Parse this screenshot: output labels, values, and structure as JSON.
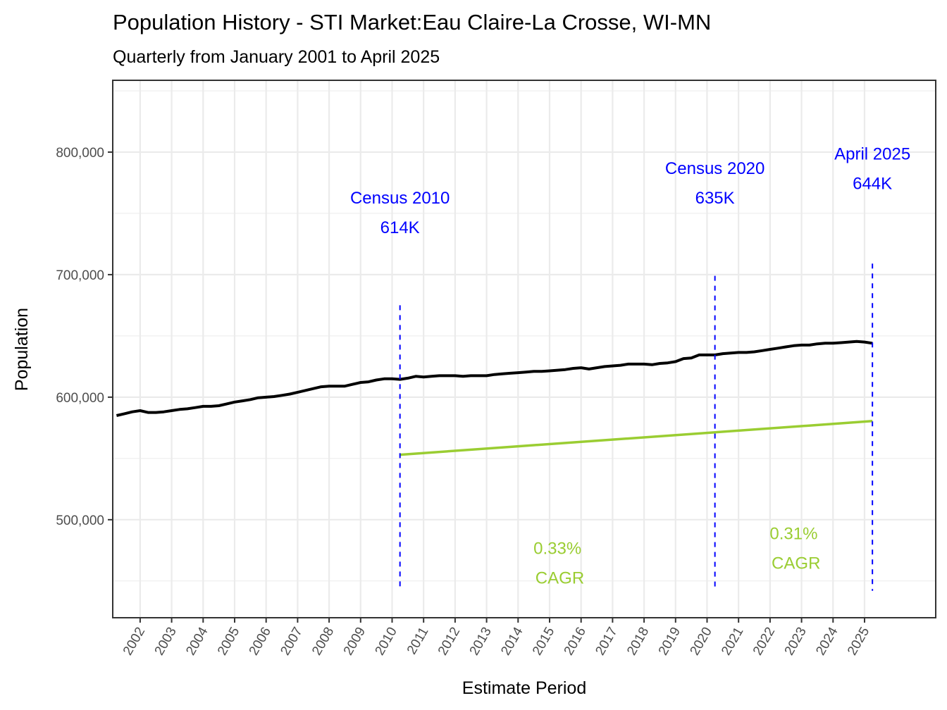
{
  "chart_data": {
    "type": "line",
    "title": "Population History - STI Market:Eau Claire-La Crosse, WI-MN",
    "subtitle": "Quarterly from January 2001 to April 2025",
    "xlabel": "Estimate Period",
    "ylabel": "Population",
    "xlim": [
      2001.13,
      2027.26
    ],
    "ylim": [
      420000,
      858600
    ],
    "grid": true,
    "x_ticks": [
      2002,
      2003,
      2004,
      2005,
      2006,
      2007,
      2008,
      2009,
      2010,
      2011,
      2012,
      2013,
      2014,
      2015,
      2016,
      2017,
      2018,
      2019,
      2020,
      2021,
      2022,
      2023,
      2024,
      2025
    ],
    "x_tick_labels": [
      "2002",
      "2003",
      "2004",
      "2005",
      "2006",
      "2007",
      "2008",
      "2009",
      "2010",
      "2011",
      "2012",
      "2013",
      "2014",
      "2015",
      "2016",
      "2017",
      "2018",
      "2019",
      "2020",
      "2021",
      "2022",
      "2023",
      "2024",
      "2025"
    ],
    "y_ticks": [
      500000,
      600000,
      700000,
      800000
    ],
    "y_tick_labels": [
      "500,000",
      "600,000",
      "700,000",
      "800,000"
    ],
    "y_minor_ticks": [
      450000,
      550000,
      650000,
      750000,
      850000
    ],
    "colors": {
      "population_line": "#000000",
      "trend_line": "#9acd32",
      "marker_line": "#0000ff",
      "marker_text": "#0000ff",
      "cagr_text": "#9acd32",
      "grid": "#ebebeb",
      "panel_border": "#333333"
    },
    "series": [
      {
        "name": "Population",
        "x": [
          2001.25,
          2001.5,
          2001.75,
          2002.0,
          2002.25,
          2002.5,
          2002.75,
          2003.0,
          2003.25,
          2003.5,
          2003.75,
          2004.0,
          2004.25,
          2004.5,
          2004.75,
          2005.0,
          2005.25,
          2005.5,
          2005.75,
          2006.0,
          2006.25,
          2006.5,
          2006.75,
          2007.0,
          2007.25,
          2007.5,
          2007.75,
          2008.0,
          2008.25,
          2008.5,
          2008.75,
          2009.0,
          2009.25,
          2009.5,
          2009.75,
          2010.0,
          2010.25,
          2010.5,
          2010.75,
          2011.0,
          2011.25,
          2011.5,
          2011.75,
          2012.0,
          2012.25,
          2012.5,
          2012.75,
          2013.0,
          2013.25,
          2013.5,
          2013.75,
          2014.0,
          2014.25,
          2014.5,
          2014.75,
          2015.0,
          2015.25,
          2015.5,
          2015.75,
          2016.0,
          2016.25,
          2016.5,
          2016.75,
          2017.0,
          2017.25,
          2017.5,
          2017.75,
          2018.0,
          2018.25,
          2018.5,
          2018.75,
          2019.0,
          2019.25,
          2019.5,
          2019.75,
          2020.0,
          2020.25,
          2020.5,
          2020.75,
          2021.0,
          2021.25,
          2021.5,
          2021.75,
          2022.0,
          2022.25,
          2022.5,
          2022.75,
          2023.0,
          2023.25,
          2023.5,
          2023.75,
          2024.0,
          2024.25,
          2024.5,
          2024.75,
          2025.0,
          2025.25
        ],
        "values": [
          585000,
          586500,
          588000,
          589000,
          587500,
          587500,
          588000,
          589000,
          590000,
          590500,
          591500,
          592500,
          592500,
          593000,
          594500,
          596000,
          597000,
          598000,
          599500,
          600000,
          600500,
          601500,
          602500,
          604000,
          605500,
          607000,
          608500,
          609000,
          609000,
          609000,
          610500,
          612000,
          612500,
          614000,
          615000,
          615000,
          614500,
          615500,
          617000,
          616500,
          617000,
          617500,
          617500,
          617500,
          617000,
          617500,
          617500,
          617500,
          618500,
          619000,
          619500,
          620000,
          620500,
          621000,
          621000,
          621500,
          622000,
          622500,
          623500,
          624000,
          623000,
          624000,
          625000,
          625500,
          626000,
          627000,
          627000,
          627000,
          626500,
          627500,
          628000,
          629000,
          631500,
          632000,
          634500,
          634500,
          634500,
          635500,
          636000,
          636500,
          636500,
          637000,
          638000,
          639000,
          640000,
          641000,
          642000,
          642500,
          642500,
          643500,
          644000,
          644000,
          644500,
          645000,
          645500,
          645000,
          644000
        ]
      },
      {
        "name": "CAGR trend",
        "x": [
          2010.25,
          2025.25
        ],
        "values": [
          553000,
          580500
        ]
      }
    ],
    "markers": [
      {
        "x": 2010.25,
        "y_from": 442000,
        "y_to": 675000,
        "label_line1": "Census 2010",
        "label_line2": "614K",
        "label_x": 2010.25,
        "label_y": 750000
      },
      {
        "x": 2020.25,
        "y_from": 442000,
        "y_to": 699000,
        "label_line1": "Census 2020",
        "label_line2": "635K",
        "label_x": 2020.25,
        "label_y": 774000
      },
      {
        "x": 2025.25,
        "y_from": 442000,
        "y_to": 709000,
        "label_line1": "April 2025",
        "label_line2": "644K",
        "label_x": 2025.25,
        "label_y": 786000
      }
    ],
    "cagr_annotations": [
      {
        "line1": "0.33%",
        "line2": " CAGR",
        "x": 2015.25,
        "y": 464000
      },
      {
        "line1": "0.31%",
        "line2": " CAGR",
        "x": 2022.75,
        "y": 476000
      }
    ]
  }
}
